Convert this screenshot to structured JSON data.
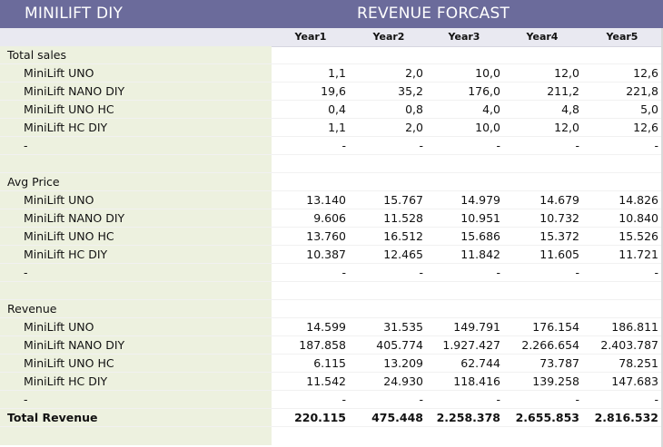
{
  "header": {
    "app_title": "MINILIFT DIY",
    "report_title": "REVENUE FORCAST"
  },
  "columns": [
    "Year1",
    "Year2",
    "Year3",
    "Year4",
    "Year5"
  ],
  "colors": {
    "title_bar": "#6b6b9b",
    "header_row": "#e9e9f1",
    "label_column": "#edf1df"
  },
  "rows": [
    {
      "type": "section",
      "label": "Total sales",
      "values": [
        "",
        "",
        "",
        "",
        ""
      ]
    },
    {
      "type": "item",
      "label": "MiniLift UNO",
      "values": [
        "1,1",
        "2,0",
        "10,0",
        "12,0",
        "12,6"
      ]
    },
    {
      "type": "item",
      "label": "MiniLift NANO DIY",
      "values": [
        "19,6",
        "35,2",
        "176,0",
        "211,2",
        "221,8"
      ]
    },
    {
      "type": "item",
      "label": "MiniLift UNO HC",
      "values": [
        "0,4",
        "0,8",
        "4,0",
        "4,8",
        "5,0"
      ]
    },
    {
      "type": "item",
      "label": "MiniLift HC DIY",
      "values": [
        "1,1",
        "2,0",
        "10,0",
        "12,0",
        "12,6"
      ]
    },
    {
      "type": "item",
      "label": "-",
      "values": [
        "-",
        "-",
        "-",
        "-",
        "-"
      ]
    },
    {
      "type": "blank",
      "label": "",
      "values": [
        "",
        "",
        "",
        "",
        ""
      ]
    },
    {
      "type": "section",
      "label": "Avg Price",
      "values": [
        "",
        "",
        "",
        "",
        ""
      ]
    },
    {
      "type": "item",
      "label": "MiniLift UNO",
      "values": [
        "13.140",
        "15.767",
        "14.979",
        "14.679",
        "14.826"
      ]
    },
    {
      "type": "item",
      "label": "MiniLift NANO DIY",
      "values": [
        "9.606",
        "11.528",
        "10.951",
        "10.732",
        "10.840"
      ]
    },
    {
      "type": "item",
      "label": "MiniLift UNO HC",
      "values": [
        "13.760",
        "16.512",
        "15.686",
        "15.372",
        "15.526"
      ]
    },
    {
      "type": "item",
      "label": "MiniLift HC DIY",
      "values": [
        "10.387",
        "12.465",
        "11.842",
        "11.605",
        "11.721"
      ]
    },
    {
      "type": "item",
      "label": "-",
      "values": [
        "-",
        "-",
        "-",
        "-",
        "-"
      ]
    },
    {
      "type": "blank",
      "label": "",
      "values": [
        "",
        "",
        "",
        "",
        ""
      ]
    },
    {
      "type": "section",
      "label": "Revenue",
      "values": [
        "",
        "",
        "",
        "",
        ""
      ]
    },
    {
      "type": "item",
      "label": "MiniLift UNO",
      "values": [
        "14.599",
        "31.535",
        "149.791",
        "176.154",
        "186.811"
      ]
    },
    {
      "type": "item",
      "label": "MiniLift NANO DIY",
      "values": [
        "187.858",
        "405.774",
        "1.927.427",
        "2.266.654",
        "2.403.787"
      ]
    },
    {
      "type": "item",
      "label": "MiniLift UNO HC",
      "values": [
        "6.115",
        "13.209",
        "62.744",
        "73.787",
        "78.251"
      ]
    },
    {
      "type": "item",
      "label": "MiniLift HC DIY",
      "values": [
        "11.542",
        "24.930",
        "118.416",
        "139.258",
        "147.683"
      ]
    },
    {
      "type": "item",
      "label": "-",
      "values": [
        "-",
        "-",
        "-",
        "-",
        "-"
      ]
    },
    {
      "type": "total",
      "label": "Total Revenue",
      "values": [
        "220.115",
        "475.448",
        "2.258.378",
        "2.655.853",
        "2.816.532"
      ]
    }
  ]
}
